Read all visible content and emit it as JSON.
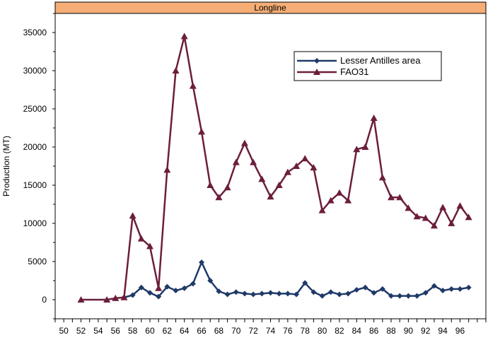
{
  "chart_data": {
    "type": "line",
    "title": "Longline",
    "xlabel": "",
    "ylabel": "Production (MT)",
    "ylim": [
      -2500,
      37500
    ],
    "xlim": [
      49,
      99
    ],
    "y_ticks": [
      0,
      5000,
      10000,
      15000,
      20000,
      25000,
      30000,
      35000
    ],
    "y_tick_labels": [
      "0",
      "5000",
      "10000",
      "15000",
      "20000",
      "25000",
      "30000",
      "35000"
    ],
    "x_ticks": [
      50,
      52,
      54,
      56,
      58,
      60,
      62,
      64,
      66,
      68,
      70,
      72,
      74,
      76,
      78,
      80,
      82,
      84,
      86,
      88,
      90,
      92,
      94,
      96
    ],
    "x_tick_labels": [
      "50",
      "52",
      "54",
      "56",
      "58",
      "60",
      "62",
      "64",
      "66",
      "68",
      "70",
      "72",
      "74",
      "76",
      "78",
      "80",
      "82",
      "84",
      "86",
      "88",
      "90",
      "92",
      "94",
      "96"
    ],
    "grid": false,
    "legend_position": "top-right",
    "series": [
      {
        "name": "Lesser Antilles area",
        "color": "#1f3a68",
        "marker": "diamond",
        "x": [
          57,
          58,
          59,
          60,
          61,
          62,
          63,
          64,
          65,
          66,
          67,
          68,
          69,
          70,
          71,
          72,
          73,
          74,
          75,
          76,
          77,
          78,
          79,
          80,
          81,
          82,
          83,
          84,
          85,
          86,
          87,
          88,
          89,
          90,
          91,
          92,
          93,
          94,
          95,
          96,
          97
        ],
        "values": [
          300,
          600,
          1600,
          900,
          400,
          1700,
          1200,
          1500,
          2100,
          4900,
          2500,
          1100,
          700,
          1000,
          800,
          700,
          800,
          900,
          800,
          800,
          700,
          2200,
          1000,
          500,
          1000,
          700,
          800,
          1300,
          1600,
          900,
          1400,
          500,
          500,
          500,
          500,
          900,
          1800,
          1200,
          1400,
          1400,
          1600
        ]
      },
      {
        "name": "FAO31",
        "color": "#6b1e3c",
        "marker": "triangle",
        "x": [
          52,
          55,
          56,
          57,
          58,
          59,
          60,
          61,
          62,
          63,
          64,
          65,
          66,
          67,
          68,
          69,
          70,
          71,
          72,
          73,
          74,
          75,
          76,
          77,
          78,
          79,
          80,
          81,
          82,
          83,
          84,
          85,
          86,
          87,
          88,
          89,
          90,
          91,
          92,
          93,
          94,
          95,
          96,
          97
        ],
        "values": [
          0,
          0,
          200,
          300,
          11000,
          8000,
          7000,
          1500,
          17000,
          30000,
          34500,
          28000,
          22000,
          15000,
          13400,
          14700,
          18000,
          20500,
          18000,
          15800,
          13500,
          15000,
          16700,
          17500,
          18500,
          17300,
          11700,
          13000,
          14000,
          13000,
          19700,
          20000,
          23800,
          16000,
          13400,
          13400,
          12000,
          10900,
          10700,
          9700,
          12100,
          10000,
          12300,
          10800
        ]
      }
    ]
  }
}
